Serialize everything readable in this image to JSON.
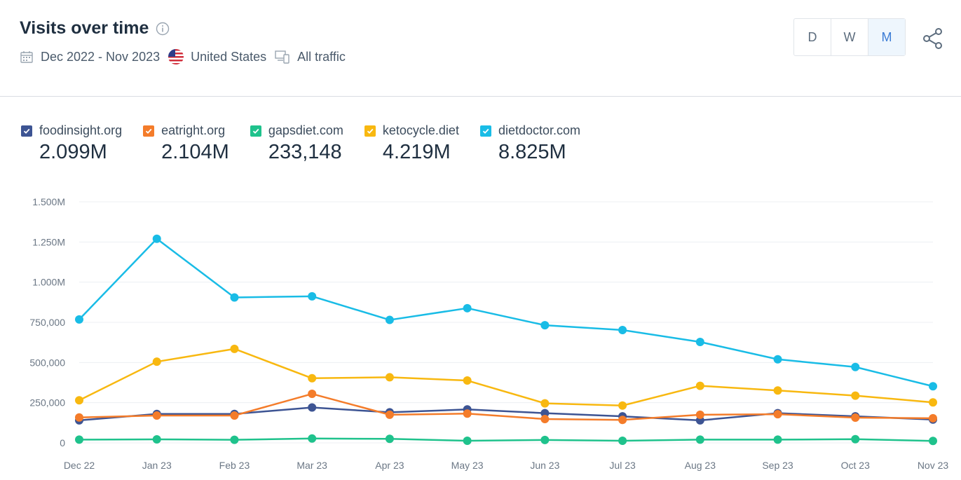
{
  "header": {
    "title": "Visits over time",
    "date_range": "Dec 2022 - Nov 2023",
    "country": "United States",
    "traffic": "All traffic",
    "granularity": [
      "D",
      "W",
      "M"
    ],
    "active_granularity": "M",
    "accent_color": "#3a7bd5",
    "icons": [
      "info-icon",
      "calendar-icon",
      "us-flag-icon",
      "devices-icon",
      "share-icon"
    ]
  },
  "legend": [
    {
      "name": "foodinsight.org",
      "total": "2.099M",
      "color": "#3d5493"
    },
    {
      "name": "eatright.org",
      "total": "2.104M",
      "color": "#f47c2a"
    },
    {
      "name": "gapsdiet.com",
      "total": "233,148",
      "color": "#1fc28c"
    },
    {
      "name": "ketocycle.diet",
      "total": "4.219M",
      "color": "#f8b810"
    },
    {
      "name": "dietdoctor.com",
      "total": "8.825M",
      "color": "#19bce6"
    }
  ],
  "chart_data": {
    "type": "line",
    "title": "Visits over time",
    "xlabel": "",
    "ylabel": "",
    "categories": [
      "Dec 22",
      "Jan 23",
      "Feb 23",
      "Mar 23",
      "Apr 23",
      "May 23",
      "Jun 23",
      "Jul 23",
      "Aug 23",
      "Sep 23",
      "Oct 23",
      "Nov 23"
    ],
    "y_ticks": [
      0,
      250000,
      500000,
      750000,
      1000000,
      1250000,
      1500000
    ],
    "y_tick_labels": [
      "0",
      "250,000",
      "500,000",
      "750,000",
      "1.000M",
      "1.250M",
      "1.500M"
    ],
    "ylim": [
      0,
      1500000
    ],
    "grid": true,
    "legend_position": "top-left",
    "series": [
      {
        "name": "foodinsight.org",
        "color": "#3d5493",
        "values": [
          140000,
          180000,
          180000,
          220000,
          190000,
          208000,
          185000,
          165000,
          140000,
          185000,
          165000,
          145000
        ]
      },
      {
        "name": "eatright.org",
        "color": "#f47c2a",
        "values": [
          158000,
          170000,
          170000,
          305000,
          175000,
          182000,
          148000,
          143000,
          175000,
          178000,
          157000,
          153000
        ]
      },
      {
        "name": "gapsdiet.com",
        "color": "#1fc28c",
        "values": [
          20000,
          22000,
          19000,
          27000,
          25000,
          13000,
          18000,
          13000,
          20000,
          20000,
          23000,
          12000
        ]
      },
      {
        "name": "ketocycle.diet",
        "color": "#f8b810",
        "values": [
          265000,
          505000,
          585000,
          402000,
          408000,
          388000,
          246000,
          232000,
          355000,
          326000,
          294000,
          252000
        ]
      },
      {
        "name": "dietdoctor.com",
        "color": "#19bce6",
        "values": [
          768000,
          1270000,
          905000,
          912000,
          765000,
          838000,
          732000,
          702000,
          628000,
          520000,
          472000,
          352000
        ]
      }
    ]
  }
}
